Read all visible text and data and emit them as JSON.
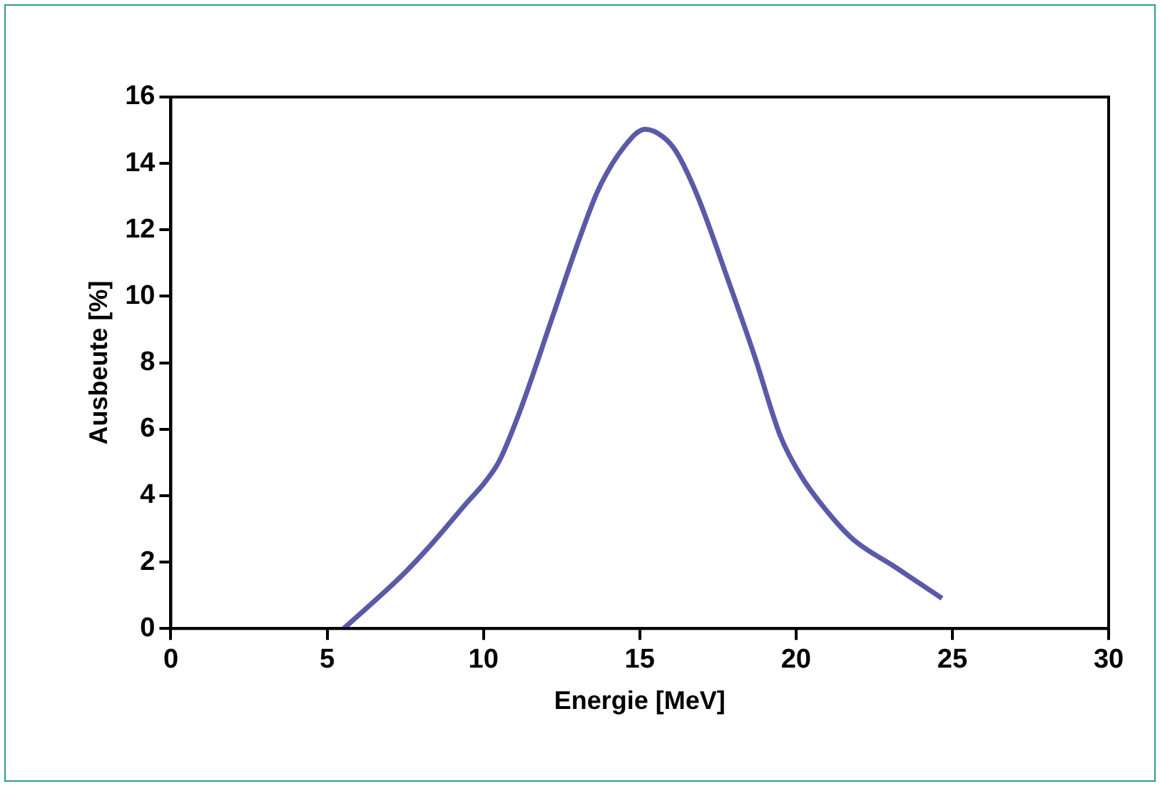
{
  "chart_data": {
    "type": "line",
    "xlabel": "Energie [MeV]",
    "ylabel": "Ausbeute [%]",
    "xlim": [
      0,
      30
    ],
    "xticks": [
      0,
      5,
      10,
      15,
      20,
      25,
      30
    ],
    "ylim": [
      0,
      16
    ],
    "yticks": [
      0,
      2,
      4,
      6,
      8,
      10,
      12,
      14,
      16
    ],
    "grid": false,
    "legend": false,
    "marker": "none",
    "line_style": "solid",
    "series": [
      {
        "color": "#5a5aa8",
        "x": [
          5.53,
          7.42,
          8.33,
          9.5,
          10.0,
          10.5,
          11.17,
          12.17,
          13.0,
          13.67,
          14.5,
          15.17,
          15.75,
          16.17,
          16.83,
          17.83,
          18.67,
          19.5,
          20.17,
          21.0,
          21.83,
          23.17,
          24.67
        ],
        "values": [
          0,
          1.62,
          2.53,
          3.82,
          4.35,
          5.03,
          6.55,
          9.27,
          11.55,
          13.2,
          14.5,
          15.03,
          14.8,
          14.35,
          13.06,
          10.48,
          8.21,
          5.79,
          4.58,
          3.52,
          2.68,
          1.85,
          0.91
        ]
      }
    ]
  }
}
